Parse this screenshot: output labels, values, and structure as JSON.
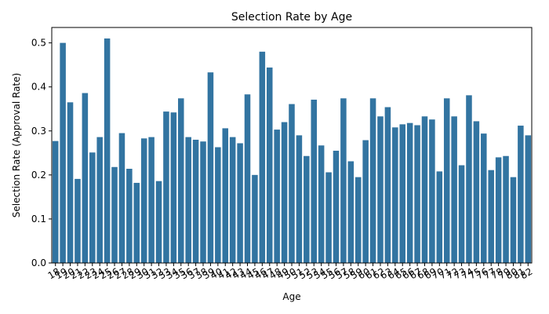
{
  "chart_data": {
    "type": "bar",
    "title": "Selection Rate by Age",
    "xlabel": "Age",
    "ylabel": "Selection Rate (Approval Rate)",
    "ylim": [
      0,
      0.535
    ],
    "yticks": [
      "0.0",
      "0.1",
      "0.2",
      "0.3",
      "0.4",
      "0.5"
    ],
    "ytick_values": [
      0.0,
      0.1,
      0.2,
      0.3,
      0.4,
      0.5
    ],
    "grid": false,
    "legend": "none",
    "bar_color": "#3274a1",
    "categories": [
      "18",
      "19",
      "20",
      "21",
      "22",
      "23",
      "24",
      "25",
      "26",
      "27",
      "28",
      "29",
      "30",
      "31",
      "32",
      "33",
      "34",
      "35",
      "36",
      "37",
      "38",
      "39",
      "40",
      "41",
      "42",
      "43",
      "44",
      "45",
      "46",
      "47",
      "48",
      "49",
      "50",
      "51",
      "52",
      "53",
      "54",
      "55",
      "56",
      "57",
      "58",
      "59",
      "60",
      "61",
      "62",
      "63",
      "64",
      "65",
      "66",
      "67",
      "68",
      "69",
      "70",
      "71",
      "72",
      "73",
      "74",
      "75",
      "76",
      "77",
      "78",
      "79",
      "80",
      "81",
      "82"
    ],
    "values": [
      0.277,
      0.5,
      0.365,
      0.191,
      0.386,
      0.251,
      0.286,
      0.51,
      0.218,
      0.295,
      0.214,
      0.182,
      0.283,
      0.286,
      0.186,
      0.344,
      0.342,
      0.374,
      0.286,
      0.28,
      0.276,
      0.433,
      0.263,
      0.306,
      0.286,
      0.272,
      0.383,
      0.2,
      0.48,
      0.444,
      0.303,
      0.32,
      0.361,
      0.29,
      0.243,
      0.371,
      0.267,
      0.206,
      0.255,
      0.374,
      0.231,
      0.195,
      0.279,
      0.374,
      0.333,
      0.354,
      0.308,
      0.315,
      0.318,
      0.313,
      0.333,
      0.326,
      0.208,
      0.374,
      0.333,
      0.222,
      0.381,
      0.322,
      0.294,
      0.211,
      0.24,
      0.243,
      0.195,
      0.312,
      0.29
    ]
  }
}
